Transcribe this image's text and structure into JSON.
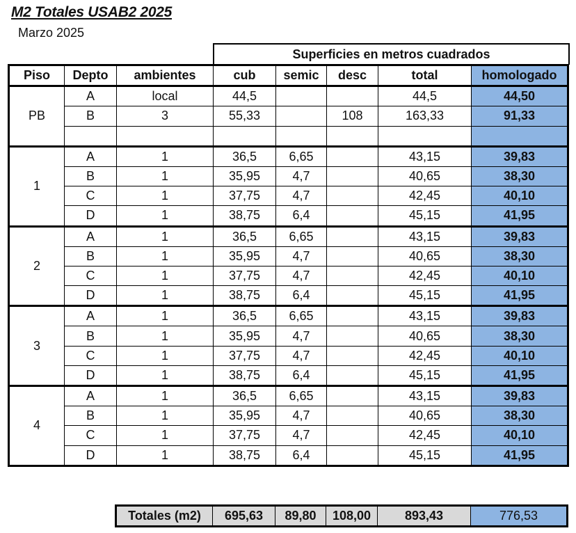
{
  "title": "M2 Totales USAB2 2025",
  "subtitle": "Marzo  2025",
  "super_header": "Superficies en metros cuadrados",
  "headers": [
    "Piso",
    "Depto",
    "ambientes",
    "cub",
    "semic",
    "desc",
    "total",
    "homologado"
  ],
  "colors": {
    "homologado": "#8db4e2",
    "totals": "#d9d9d9"
  },
  "floors": [
    {
      "piso": "PB",
      "units": [
        [
          "A",
          "local",
          "44,5",
          "",
          "",
          "44,5",
          "44,50"
        ],
        [
          "B",
          "3",
          "55,33",
          "",
          "108",
          "163,33",
          "91,33"
        ],
        [
          "",
          "",
          "",
          "",
          "",
          "",
          ""
        ]
      ]
    },
    {
      "piso": "1",
      "units": [
        [
          "A",
          "1",
          "36,5",
          "6,65",
          "",
          "43,15",
          "39,83"
        ],
        [
          "B",
          "1",
          "35,95",
          "4,7",
          "",
          "40,65",
          "38,30"
        ],
        [
          "C",
          "1",
          "37,75",
          "4,7",
          "",
          "42,45",
          "40,10"
        ],
        [
          "D",
          "1",
          "38,75",
          "6,4",
          "",
          "45,15",
          "41,95"
        ]
      ]
    },
    {
      "piso": "2",
      "units": [
        [
          "A",
          "1",
          "36,5",
          "6,65",
          "",
          "43,15",
          "39,83"
        ],
        [
          "B",
          "1",
          "35,95",
          "4,7",
          "",
          "40,65",
          "38,30"
        ],
        [
          "C",
          "1",
          "37,75",
          "4,7",
          "",
          "42,45",
          "40,10"
        ],
        [
          "D",
          "1",
          "38,75",
          "6,4",
          "",
          "45,15",
          "41,95"
        ]
      ]
    },
    {
      "piso": "3",
      "units": [
        [
          "A",
          "1",
          "36,5",
          "6,65",
          "",
          "43,15",
          "39,83"
        ],
        [
          "B",
          "1",
          "35,95",
          "4,7",
          "",
          "40,65",
          "38,30"
        ],
        [
          "C",
          "1",
          "37,75",
          "4,7",
          "",
          "42,45",
          "40,10"
        ],
        [
          "D",
          "1",
          "38,75",
          "6,4",
          "",
          "45,15",
          "41,95"
        ]
      ]
    },
    {
      "piso": "4",
      "units": [
        [
          "A",
          "1",
          "36,5",
          "6,65",
          "",
          "43,15",
          "39,83"
        ],
        [
          "B",
          "1",
          "35,95",
          "4,7",
          "",
          "40,65",
          "38,30"
        ],
        [
          "C",
          "1",
          "37,75",
          "4,7",
          "",
          "42,45",
          "40,10"
        ],
        [
          "D",
          "1",
          "38,75",
          "6,4",
          "",
          "45,15",
          "41,95"
        ]
      ]
    }
  ],
  "totals": {
    "label": "Totales (m2)",
    "cub": "695,63",
    "semic": "89,80",
    "desc": "108,00",
    "total": "893,43",
    "homologado": "776,53"
  }
}
